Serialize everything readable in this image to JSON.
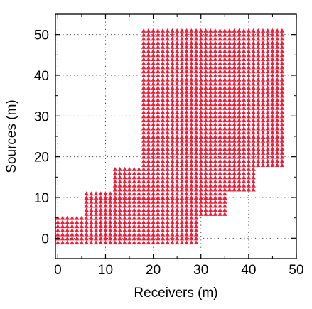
{
  "chart_data": {
    "type": "scatter",
    "marker": "triangle",
    "marker_color": "#e8203a",
    "xlabel": "Receivers (m)",
    "ylabel": "Sources (m)",
    "xlim": [
      -0.5,
      50
    ],
    "ylim": [
      -5,
      55
    ],
    "xticks": [
      0,
      10,
      20,
      30,
      40,
      50
    ],
    "yticks": [
      0,
      10,
      20,
      30,
      40,
      50
    ],
    "x_minor_ticks": [
      5,
      15,
      25,
      35,
      45
    ],
    "y_minor_ticks": [
      5,
      15,
      25,
      35,
      45
    ],
    "grid": true,
    "grid_style": "dotted",
    "point_spacing": 1,
    "point_spacing_note": "triangles on a 1 m grid; regions are inclusive rectangles of (receiver, source) pairs",
    "regions": [
      {
        "x": [
          0,
          5
        ],
        "y": [
          -1,
          5
        ]
      },
      {
        "x": [
          6,
          11
        ],
        "y": [
          -1,
          11
        ]
      },
      {
        "x": [
          12,
          17
        ],
        "y": [
          -1,
          17
        ]
      },
      {
        "x": [
          18,
          29
        ],
        "y": [
          -1,
          51
        ]
      },
      {
        "x": [
          30,
          35
        ],
        "y": [
          6,
          51
        ]
      },
      {
        "x": [
          36,
          41
        ],
        "y": [
          12,
          51
        ]
      },
      {
        "x": [
          42,
          47
        ],
        "y": [
          18,
          51
        ]
      }
    ]
  }
}
